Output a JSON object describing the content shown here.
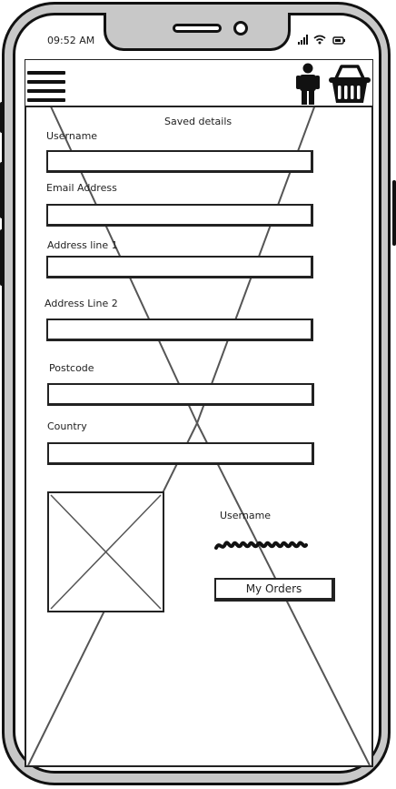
{
  "status_bar": {
    "time": "09:52 AM",
    "icons": "signal-wifi-battery"
  },
  "header": {
    "menu_icon": "hamburger-menu-icon",
    "account_icon": "person-icon",
    "cart_icon": "basket-icon"
  },
  "form": {
    "title": "Saved details",
    "fields": [
      {
        "label": "Username",
        "value": ""
      },
      {
        "label": "Email Address",
        "value": ""
      },
      {
        "label": "Address line 1",
        "value": ""
      },
      {
        "label": "Address Line 2",
        "value": ""
      },
      {
        "label": "Postcode",
        "value": ""
      },
      {
        "label": "Country",
        "value": ""
      }
    ]
  },
  "profile": {
    "username_label": "Username",
    "orders_button": "My Orders",
    "photo_icon": "image-placeholder-icon"
  }
}
